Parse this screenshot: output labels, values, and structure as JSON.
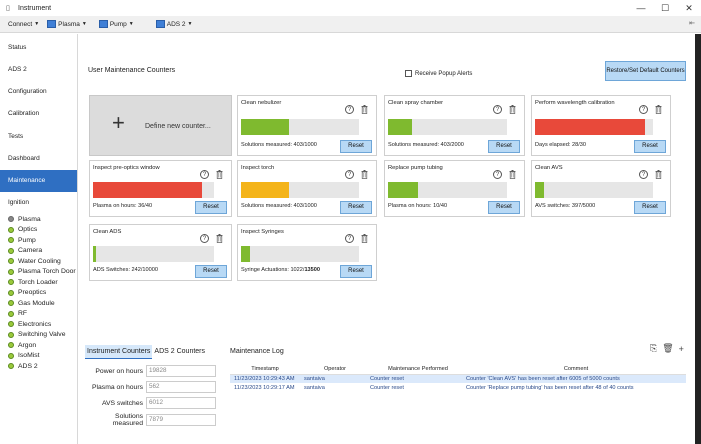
{
  "window": {
    "title": "Instrument",
    "minimize": "—",
    "maximize": "☐",
    "close": "✕"
  },
  "toolbar": {
    "connect": "Connect",
    "plasma": "Plasma",
    "pump": "Pump",
    "ads": "ADS 2",
    "pin": "⇤"
  },
  "sidebar": {
    "items": [
      "Status",
      "ADS 2",
      "Configuration",
      "Calibration",
      "Tests",
      "Dashboard",
      "Maintenance",
      "Ignition"
    ],
    "subitems": [
      "Plasma",
      "Optics",
      "Pump",
      "Camera",
      "Water Cooling",
      "Plasma Torch Door",
      "Torch Loader",
      "Preoptics",
      "Gas Module",
      "RF",
      "Electronics",
      "Switching Valve",
      "Argon",
      "IsoMist",
      "ADS 2"
    ]
  },
  "main": {
    "section_title": "User Maintenance Counters",
    "popup_alerts": "Receive Popup Alerts",
    "restore_button": "Restore/Set Default Counters",
    "define_new": "Define new counter...",
    "reset_label": "Reset"
  },
  "colors": {
    "green": "#7fba2f",
    "red": "#e8493a",
    "orange": "#f4b41a",
    "accent": "#2f6fc2"
  },
  "counters": [
    {
      "title": "Clean nebulizer",
      "status": "Solutions measured: 403/1000",
      "fraction": 0.403,
      "color": "#7fba2f"
    },
    {
      "title": "Clean spray chamber",
      "status": "Solutions measured: 403/2000",
      "fraction": 0.2015,
      "color": "#7fba2f"
    },
    {
      "title": "Perform wavelength calibration",
      "status": "Days elapsed: 28/30",
      "fraction": 0.933,
      "color": "#e8493a"
    },
    {
      "title": "Inspect pre-optics window",
      "status": "Plasma on hours: 36/40",
      "fraction": 0.9,
      "color": "#e8493a"
    },
    {
      "title": "Inspect torch",
      "status": "Solutions measured: 403/1000",
      "fraction": 0.403,
      "color": "#f4b41a"
    },
    {
      "title": "Replace pump tubing",
      "status": "Plasma on hours: 10/40",
      "fraction": 0.25,
      "color": "#7fba2f"
    },
    {
      "title": "Clean AVS",
      "status": "AVS switches: 397/5000",
      "fraction": 0.0794,
      "color": "#7fba2f"
    },
    {
      "title": "Clean ADS",
      "status": "ADS Switches: 242/10000",
      "fraction": 0.0242,
      "color": "#7fba2f"
    },
    {
      "title": "Inspect Syringes",
      "status_prefix": "Syringe Actuations: 1022/",
      "status_bold": "13500",
      "fraction": 0.0757,
      "color": "#7fba2f"
    }
  ],
  "instrument_counters": {
    "tab_active": "Instrument Counters",
    "tab_other": "ADS 2 Counters",
    "rows": [
      {
        "label": "Power on hours",
        "value": "19828"
      },
      {
        "label": "Plasma on hours",
        "value": "562"
      },
      {
        "label": "AVS switches",
        "value": "6012"
      },
      {
        "label": "Solutions measured",
        "value": "7879"
      }
    ]
  },
  "log": {
    "title": "Maintenance Log",
    "columns": [
      "Timestamp",
      "Operator",
      "Maintenance Performed",
      "Comment"
    ],
    "rows": [
      {
        "timestamp": "11/23/2023 10:29:43 AM",
        "operator": "santaiva",
        "performed": "Counter reset",
        "comment": "Counter 'Clean AVS' has been reset after 6005 of 5000 counts"
      },
      {
        "timestamp": "11/23/2023 10:29:17 AM",
        "operator": "santaiva",
        "performed": "Counter reset",
        "comment": "Counter 'Replace pump tubing' has been reset after 48 of 40 counts"
      }
    ]
  }
}
